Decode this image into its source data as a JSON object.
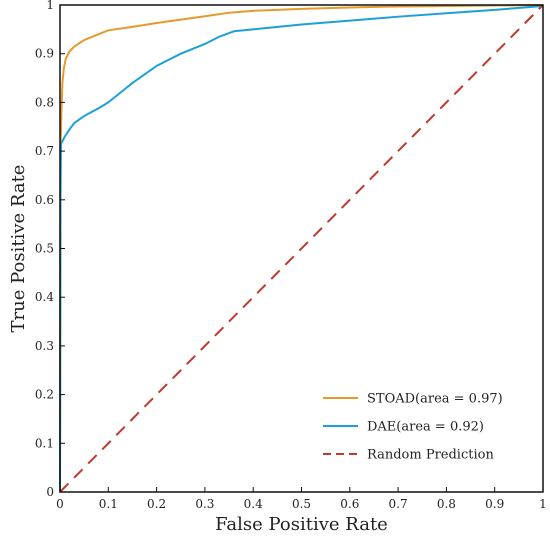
{
  "chart_data": {
    "type": "line",
    "title": "",
    "xlabel": "False Positive Rate",
    "ylabel": "True Positive Rate",
    "xlim": [
      0,
      1
    ],
    "ylim": [
      0,
      1
    ],
    "xticks": [
      "0",
      "0.1",
      "0.2",
      "0.3",
      "0.4",
      "0.5",
      "0.6",
      "0.7",
      "0.8",
      "0.9",
      "1"
    ],
    "yticks": [
      "0",
      "0.1",
      "0.2",
      "0.3",
      "0.4",
      "0.5",
      "0.6",
      "0.7",
      "0.8",
      "0.9",
      "1"
    ],
    "grid": false,
    "legend_position": "bottom-right",
    "series": [
      {
        "name": "STOAD(area = 0.97)",
        "color": "#e69a2e",
        "style": "solid",
        "x": [
          0,
          0.001,
          0.003,
          0.005,
          0.008,
          0.012,
          0.02,
          0.03,
          0.05,
          0.08,
          0.1,
          0.15,
          0.2,
          0.25,
          0.3,
          0.35,
          0.4,
          0.5,
          0.6,
          0.7,
          0.8,
          0.9,
          1.0
        ],
        "y": [
          0,
          0.7,
          0.78,
          0.84,
          0.87,
          0.89,
          0.905,
          0.915,
          0.928,
          0.94,
          0.948,
          0.955,
          0.963,
          0.97,
          0.977,
          0.984,
          0.988,
          0.992,
          0.995,
          0.997,
          0.998,
          0.999,
          1.0
        ]
      },
      {
        "name": "DAE(area = 0.92)",
        "color": "#1e9fd8",
        "style": "solid",
        "x": [
          0,
          0.001,
          0.002,
          0.005,
          0.01,
          0.02,
          0.03,
          0.05,
          0.08,
          0.1,
          0.15,
          0.2,
          0.25,
          0.3,
          0.33,
          0.36,
          0.4,
          0.5,
          0.6,
          0.7,
          0.8,
          0.9,
          1.0
        ],
        "y": [
          0,
          0.6,
          0.715,
          0.72,
          0.73,
          0.745,
          0.758,
          0.772,
          0.788,
          0.8,
          0.84,
          0.875,
          0.9,
          0.92,
          0.935,
          0.946,
          0.95,
          0.96,
          0.968,
          0.976,
          0.983,
          0.99,
          0.998
        ]
      },
      {
        "name": "Random Prediction",
        "color": "#c0392b",
        "style": "dashed",
        "x": [
          0,
          1
        ],
        "y": [
          0,
          1
        ]
      }
    ]
  }
}
